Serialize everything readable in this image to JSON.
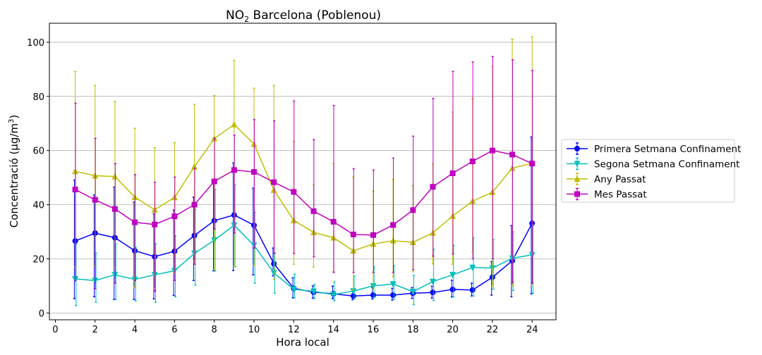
{
  "chart_data": {
    "type": "line",
    "title_main": "NO",
    "title_sub": "2",
    "title_rest": " Barcelona (Poblenou)",
    "xlabel": "Hora local",
    "ylabel_main": "Concentració (µg/m",
    "ylabel_sup": "3",
    "ylabel_end": ")",
    "xlim": [
      -0.3,
      25.2
    ],
    "ylim": [
      -2.5,
      107
    ],
    "xticks": [
      0,
      2,
      4,
      6,
      8,
      10,
      12,
      14,
      16,
      18,
      20,
      22,
      24
    ],
    "yticks": [
      0,
      20,
      40,
      60,
      80,
      100
    ],
    "grid": "y",
    "legend_position": "outside-right",
    "x": [
      1,
      2,
      3,
      4,
      5,
      6,
      7,
      8,
      9,
      10,
      11,
      12,
      13,
      14,
      15,
      16,
      17,
      18,
      19,
      20,
      21,
      22,
      23,
      24
    ],
    "series": [
      {
        "name": "Primera Setmana Confinament",
        "color": "#0000ff",
        "marker": "circle",
        "values": [
          26.6,
          29.5,
          27.8,
          23.0,
          20.8,
          22.8,
          28.6,
          34.1,
          36.2,
          32.4,
          18.2,
          9.1,
          7.7,
          7.1,
          6.3,
          6.6,
          6.6,
          7.3,
          7.6,
          8.7,
          8.5,
          13.2,
          19.3,
          33.1
        ],
        "err_low": [
          5.3,
          6.0,
          5.0,
          5.0,
          5.2,
          6.5,
          12.0,
          15.6,
          15.7,
          14.1,
          13.7,
          5.6,
          5.5,
          5.3,
          4.9,
          5.2,
          4.8,
          5.4,
          5.5,
          5.9,
          6.3,
          6.6,
          6.0,
          7.1
        ],
        "err_high": [
          49.1,
          43.6,
          46.5,
          41.0,
          36.6,
          38.0,
          42.8,
          48.6,
          55.4,
          46.1,
          24.0,
          13.0,
          10.0,
          9.9,
          8.2,
          9.4,
          9.1,
          9.4,
          9.9,
          12.1,
          11.0,
          19.0,
          32.3,
          65.0
        ]
      },
      {
        "name": "Segona Setmana Confinament",
        "color": "#00bfbf",
        "marker": "triangle-down",
        "values": [
          12.6,
          12.0,
          14.1,
          12.4,
          14.1,
          15.6,
          22.0,
          26.9,
          32.4,
          25.0,
          14.8,
          8.8,
          8.0,
          6.8,
          8.1,
          10.0,
          10.7,
          7.9,
          11.6,
          14.1,
          16.8,
          16.6,
          20.2,
          21.5
        ],
        "err_low": [
          2.7,
          4.0,
          5.0,
          4.5,
          4.0,
          6.0,
          10.3,
          15.5,
          17.1,
          11.0,
          7.3,
          5.6,
          5.3,
          4.5,
          5.2,
          5.7,
          5.0,
          3.1,
          4.6,
          6.0,
          6.3,
          8.8,
          8.3,
          7.3
        ],
        "err_high": [
          25.3,
          22.2,
          25.5,
          24.3,
          25.6,
          28.5,
          38.3,
          45.6,
          47.4,
          37.2,
          22.2,
          14.3,
          10.5,
          11.5,
          13.7,
          17.1,
          17.5,
          13.9,
          23.6,
          25.0,
          27.8,
          27.2,
          30.0,
          32.7
        ]
      },
      {
        "name": "Any Passat",
        "color": "#bfbf00",
        "marker": "triangle-up",
        "values": [
          52.3,
          50.7,
          50.4,
          42.8,
          38.1,
          42.7,
          54.0,
          64.4,
          69.6,
          62.4,
          45.4,
          34.2,
          29.8,
          27.8,
          23.0,
          25.5,
          26.7,
          26.1,
          29.6,
          35.8,
          41.3,
          44.6,
          53.5,
          55.3
        ],
        "err_low": [
          17.0,
          17.3,
          16.8,
          9.3,
          9.0,
          14.7,
          19.0,
          16.0,
          17.3,
          17.6,
          12.5,
          18.0,
          17.0,
          15.2,
          8.5,
          8.8,
          13.3,
          15.3,
          18.1,
          18.0,
          22.6,
          10.0,
          10.0,
          10.5
        ],
        "err_high": [
          89.2,
          84.0,
          78.1,
          68.2,
          61.1,
          62.9,
          77.0,
          80.3,
          93.3,
          83.0,
          84.0,
          63.4,
          47.3,
          55.2,
          50.2,
          45.0,
          49.3,
          47.0,
          55.0,
          74.2,
          79.2,
          91.0,
          101.1,
          102.0
        ]
      },
      {
        "name": "Mes Passat",
        "color": "#bf00bf",
        "marker": "square",
        "values": [
          45.6,
          41.8,
          38.4,
          33.5,
          32.7,
          35.7,
          40.0,
          48.6,
          52.8,
          52.1,
          48.3,
          44.7,
          37.6,
          33.7,
          29.0,
          28.8,
          32.5,
          38.0,
          46.6,
          51.6,
          56.0,
          60.0,
          58.5,
          55.2
        ],
        "err_low": [
          12.0,
          9.0,
          11.0,
          12.0,
          8.0,
          12.0,
          18.0,
          31.0,
          29.5,
          24.0,
          22.0,
          22.0,
          20.8,
          15.0,
          15.0,
          15.0,
          15.0,
          16.0,
          21.0,
          21.8,
          20.0,
          20.0,
          11.2,
          11.0
        ],
        "err_high": [
          77.5,
          64.5,
          55.2,
          51.1,
          48.3,
          50.2,
          53.5,
          64.5,
          65.7,
          71.4,
          71.0,
          78.3,
          64.0,
          76.6,
          53.3,
          52.8,
          57.2,
          65.3,
          79.2,
          89.2,
          92.7,
          94.7,
          93.5,
          89.6
        ]
      }
    ]
  }
}
